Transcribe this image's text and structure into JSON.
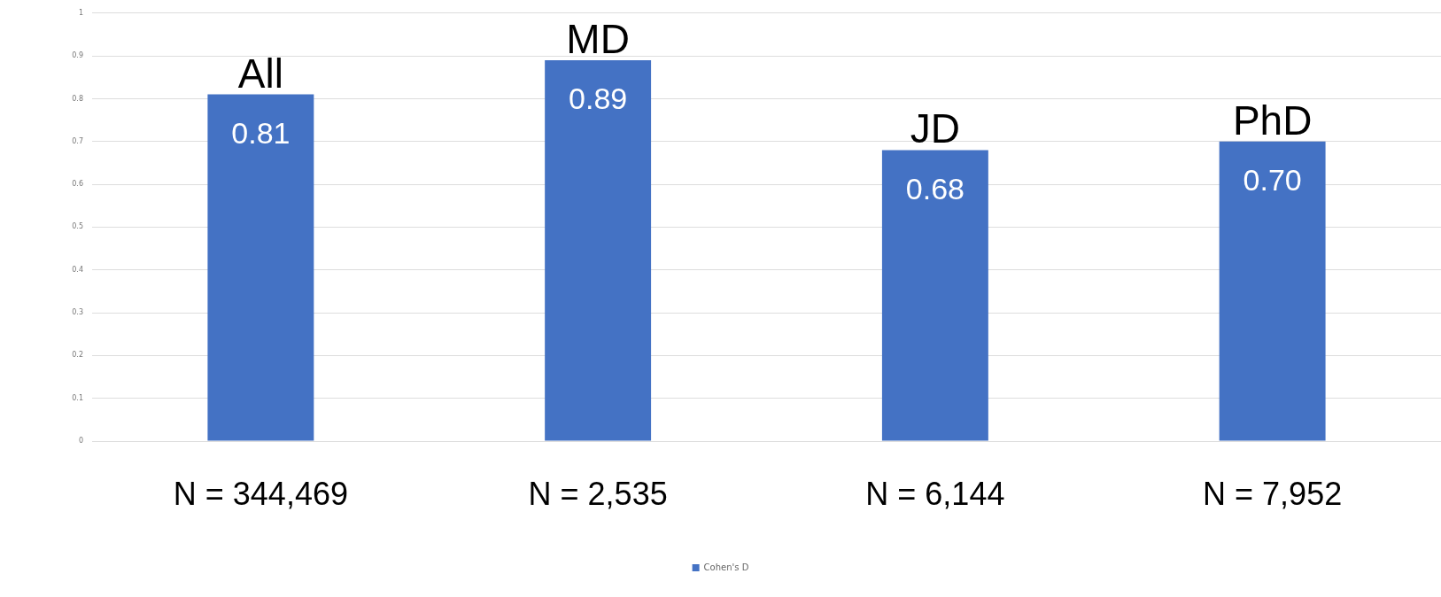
{
  "chart_data": {
    "type": "bar",
    "categories": [
      "All",
      "MD",
      "JD",
      "PhD"
    ],
    "series": [
      {
        "name": "Cohen's D",
        "color": "#4472c4",
        "values": [
          0.81,
          0.89,
          0.68,
          0.7
        ],
        "value_labels": [
          "0.81",
          "0.89",
          "0.68",
          "0.70"
        ]
      }
    ],
    "ylim": [
      0,
      1
    ],
    "yticks": [
      0,
      {
        "value": 0.1,
        "label": "0.1"
      },
      {
        "value": 0.2,
        "label": "0.2"
      },
      {
        "value": 0.3,
        "label": "0.3"
      },
      {
        "value": 0.4,
        "label": "0.4"
      },
      {
        "value": 0.5,
        "label": "0.5"
      },
      {
        "value": 0.6,
        "label": "0.6"
      },
      {
        "value": 0.7,
        "label": "0.7"
      },
      {
        "value": 0.8,
        "label": "0.8"
      },
      {
        "value": 0.9,
        "label": "0.9"
      },
      1
    ],
    "grid": "y",
    "legend": "bottom",
    "annotations": [
      "N = 344,469",
      "N = 2,535",
      "N = 6,144",
      "N = 7,952"
    ]
  }
}
